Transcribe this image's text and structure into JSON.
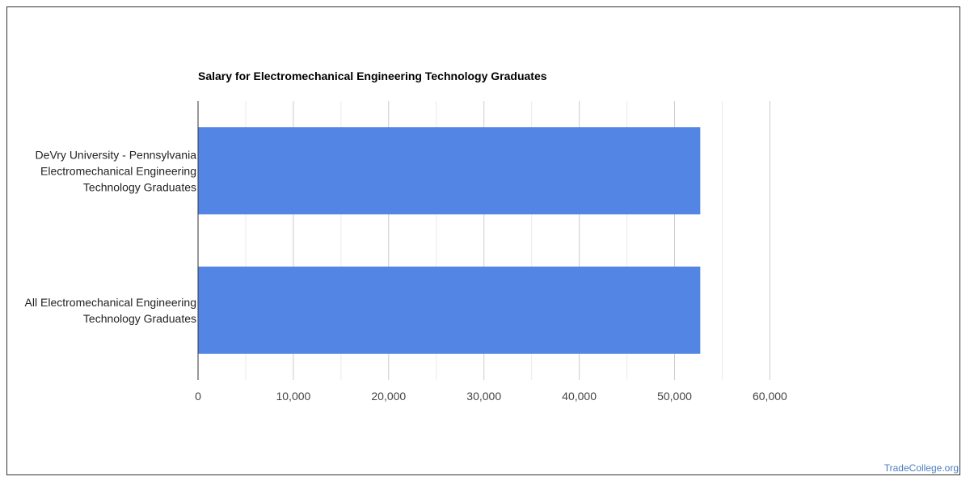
{
  "chart_data": {
    "type": "bar",
    "orientation": "horizontal",
    "title": "Salary for Electromechanical Engineering Technology Graduates",
    "categories": [
      [
        "DeVry University - Pennsylvania",
        "Electromechanical Engineering",
        "Technology Graduates"
      ],
      [
        "All Electromechanical Engineering",
        "Technology Graduates"
      ]
    ],
    "values": [
      52700,
      52700
    ],
    "xlim": [
      0,
      60000
    ],
    "xticks": [
      0,
      10000,
      20000,
      30000,
      40000,
      50000,
      60000
    ],
    "xtick_labels": [
      "0",
      "10,000",
      "20,000",
      "30,000",
      "40,000",
      "50,000",
      "60,000"
    ],
    "grid": true,
    "bar_color": "#5386e4"
  },
  "footer": {
    "credit": "TradeCollege.org"
  }
}
